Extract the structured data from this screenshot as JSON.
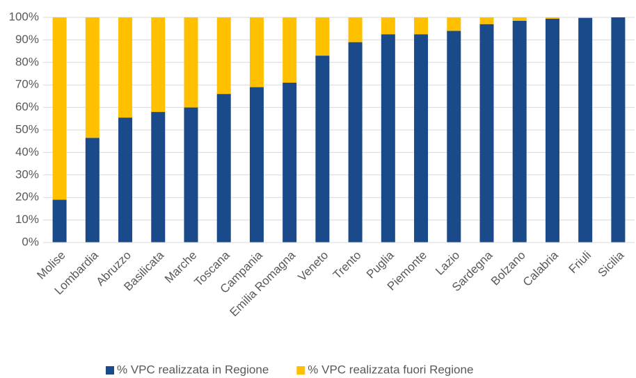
{
  "chart_data": {
    "type": "stacked_bar",
    "categories": [
      "Molise",
      "Lombardia",
      "Abruzzo",
      "Basilicata",
      "Marche",
      "Toscana",
      "Campania",
      "Emilia Romagna",
      "Veneto",
      "Trento",
      "Puglia",
      "Piemonte",
      "Lazio",
      "Sardegna",
      "Bolzano",
      "Calabria",
      "Friuli",
      "Sicilia"
    ],
    "series": [
      {
        "name": "% VPC realizzata in Regione",
        "color": "#1a4a8a",
        "values": [
          19,
          46.5,
          55.5,
          58,
          60,
          66,
          69,
          71,
          83,
          89,
          92.5,
          92.5,
          94,
          97,
          98.5,
          99.4,
          99.7,
          100
        ]
      },
      {
        "name": "% VPC realizzata fuori Regione",
        "color": "#ffc000",
        "values": [
          81,
          53.5,
          44.5,
          42,
          40,
          34,
          31,
          29,
          17,
          11,
          7.5,
          7.5,
          6,
          3,
          1.5,
          0.6,
          0.3,
          0
        ]
      }
    ],
    "ylim": [
      0,
      100
    ],
    "yticks": [
      {
        "value": 0,
        "label": "0%"
      },
      {
        "value": 10,
        "label": "10%"
      },
      {
        "value": 20,
        "label": "20%"
      },
      {
        "value": 30,
        "label": "30%"
      },
      {
        "value": 40,
        "label": "40%"
      },
      {
        "value": 50,
        "label": "50%"
      },
      {
        "value": 60,
        "label": "60%"
      },
      {
        "value": 70,
        "label": "70%"
      },
      {
        "value": 80,
        "label": "80%"
      },
      {
        "value": 90,
        "label": "90%"
      },
      {
        "value": 100,
        "label": "100%"
      }
    ],
    "grid": true,
    "legend": "bottom"
  }
}
